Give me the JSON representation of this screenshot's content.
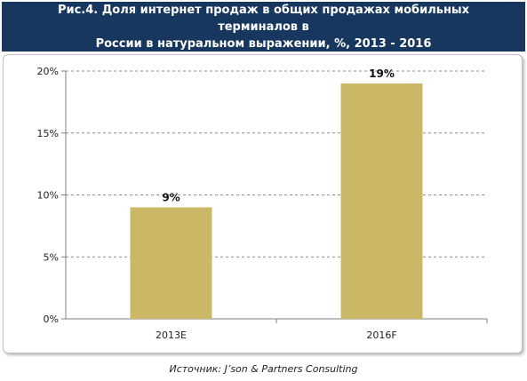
{
  "title_lines": [
    "Рис.4. Доля интернет продаж в общих продажах мобильных терминалов в",
    "России в натуральном выражении, %, 2013 - 2016"
  ],
  "source": "Источник: J’son & Partners Consulting",
  "colors": {
    "title_bg": "#17375e",
    "bar": "#cbb866",
    "grid": "#8c8c8c"
  },
  "chart_data": {
    "type": "bar",
    "categories": [
      "2013E",
      "2016F"
    ],
    "values": [
      9,
      19
    ],
    "value_labels": [
      "9%",
      "19%"
    ],
    "ylim": [
      0,
      20
    ],
    "y_ticks": [
      0,
      5,
      10,
      15,
      20
    ],
    "y_tick_labels": [
      "0%",
      "5%",
      "10%",
      "15%",
      "20%"
    ],
    "grid": true,
    "legend": false
  }
}
